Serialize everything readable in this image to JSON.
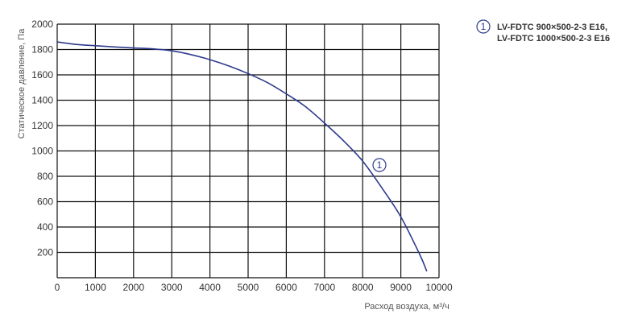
{
  "colors": {
    "curve": "#2d3a8c",
    "grid": "#111111",
    "marker": "#2d3a8c"
  },
  "chart_data": {
    "type": "line",
    "xlabel": "Расход воздуха, м³/ч",
    "ylabel": "Статическое давление, Па",
    "xlim": [
      0,
      10000
    ],
    "ylim": [
      0,
      2000
    ],
    "x_ticks": [
      "0",
      "1000",
      "2000",
      "3000",
      "4000",
      "5000",
      "6000",
      "7000",
      "8000",
      "9000",
      "10000"
    ],
    "y_ticks": [
      "200",
      "400",
      "600",
      "800",
      "1000",
      "1200",
      "1400",
      "1600",
      "1800",
      "2000"
    ],
    "grid": true,
    "legend_position": "top-right",
    "series": [
      {
        "marker_label": "1",
        "legend": [
          "LV-FDTC 900×500-2-3 E16,",
          "LV-FDTC 1000×500-2-3 E16"
        ],
        "x": [
          0,
          500,
          1000,
          1500,
          2000,
          2500,
          3000,
          3500,
          4000,
          4500,
          5000,
          5500,
          6000,
          6500,
          7000,
          7500,
          8000,
          8500,
          9000,
          9500,
          9680
        ],
        "y": [
          1860,
          1840,
          1830,
          1820,
          1812,
          1805,
          1790,
          1760,
          1720,
          1670,
          1610,
          1540,
          1450,
          1350,
          1220,
          1080,
          920,
          710,
          480,
          180,
          50
        ]
      }
    ]
  }
}
